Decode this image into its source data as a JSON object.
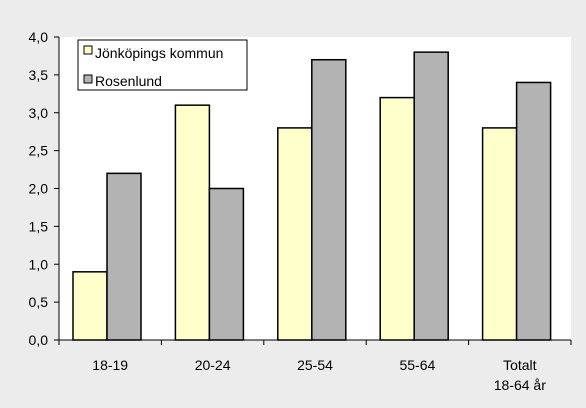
{
  "chart_data": {
    "type": "bar",
    "categories": [
      [
        "18-19"
      ],
      [
        "20-24"
      ],
      [
        "25-54"
      ],
      [
        "55-64"
      ],
      [
        "Totalt",
        "18-64 år"
      ]
    ],
    "series": [
      {
        "name": "Jönköpings kommun",
        "color": "#ffffcc",
        "values": [
          0.9,
          3.1,
          2.8,
          3.2,
          2.8
        ]
      },
      {
        "name": "Rosenlund",
        "color": "#b3b3b3",
        "values": [
          2.2,
          2.0,
          3.7,
          3.8,
          3.4
        ]
      }
    ],
    "ylim": [
      0,
      4
    ],
    "yticks": [
      "0,0",
      "0,5",
      "1,0",
      "1,5",
      "2,0",
      "2,5",
      "3,0",
      "3,5",
      "4,0"
    ],
    "ytick_values": [
      0,
      0.5,
      1,
      1.5,
      2,
      2.5,
      3,
      3.5,
      4
    ],
    "title": "",
    "xlabel": "",
    "ylabel": "",
    "grid": false,
    "legend_position": "top-left",
    "bar_edge_color": "#000000",
    "plot_background": "#ffffff",
    "page_background": "#ececec"
  }
}
